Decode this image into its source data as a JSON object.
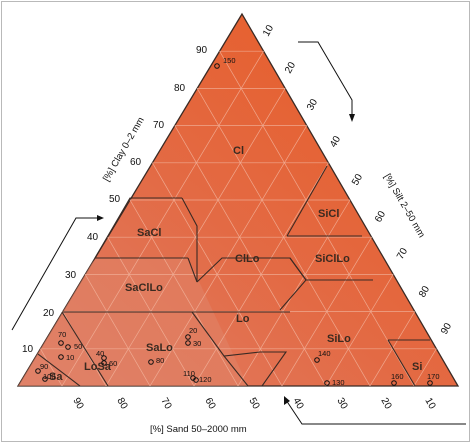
{
  "axes": {
    "clay": {
      "title": "[%] Clay 0–2 mm",
      "ticks": [
        "10",
        "20",
        "30",
        "40",
        "50",
        "60",
        "70",
        "80",
        "90"
      ]
    },
    "silt": {
      "title": "[%] Silt 2–50 mm",
      "ticks": [
        "10",
        "20",
        "30",
        "40",
        "50",
        "60",
        "70",
        "80",
        "90"
      ]
    },
    "sand": {
      "title": "[%] Sand 50–2000 mm",
      "ticks": [
        "90",
        "80",
        "70",
        "60",
        "50",
        "40",
        "30",
        "20",
        "10"
      ]
    }
  },
  "zones": {
    "cl": "Cl",
    "sicl": "SiCl",
    "sacl": "SaCl",
    "cllo": "ClLo",
    "sicllo": "SiClLo",
    "sacllo": "SaClLo",
    "lo": "Lo",
    "salo": "SaLo",
    "silo": "SiLo",
    "losa": "LoSa",
    "sa": "Sa",
    "si": "Si"
  },
  "samples": [
    {
      "id": "150"
    },
    {
      "id": "70"
    },
    {
      "id": "50"
    },
    {
      "id": "10"
    },
    {
      "id": "90"
    },
    {
      "id": "100"
    },
    {
      "id": "40"
    },
    {
      "id": "60"
    },
    {
      "id": "80"
    },
    {
      "id": "20"
    },
    {
      "id": "30"
    },
    {
      "id": "110"
    },
    {
      "id": "120"
    },
    {
      "id": "140"
    },
    {
      "id": "130"
    },
    {
      "id": "160"
    },
    {
      "id": "170"
    }
  ],
  "colors": {
    "fill": "#e8602f",
    "fill_light": "#e27b5e",
    "fill_mid": "#e66e47",
    "grid": "#f3b29a",
    "border": "#3a2a24"
  }
}
